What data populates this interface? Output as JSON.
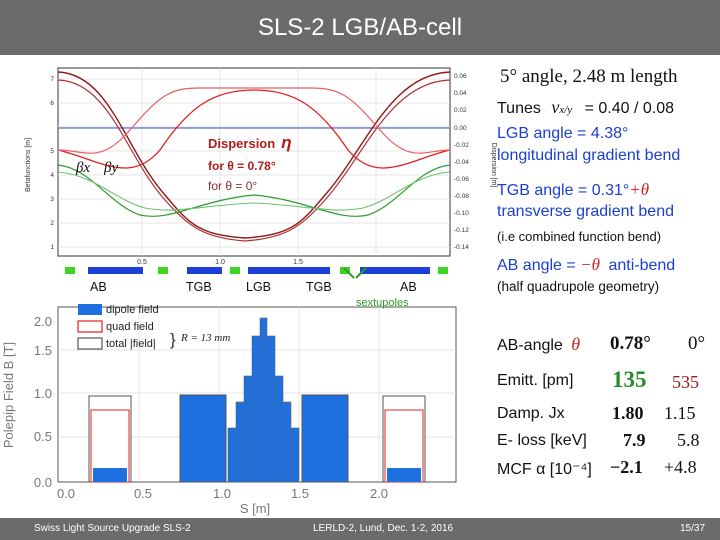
{
  "slide": {
    "title": "SLS-2 LGB/AB-cell",
    "footer_left": "Swiss Light Source Upgrade  SLS-2",
    "footer_center": "LERLD-2, Lund, Dec. 1-2, 2016",
    "footer_right": "15/37"
  },
  "optics_plot": {
    "y_ticks_left": [
      "1",
      "2",
      "3",
      "4",
      "5",
      "6",
      "7"
    ],
    "y_ticks_right": [
      "0.06",
      "0.04",
      "0.02",
      "0.00",
      "-0.02",
      "-0.04",
      "-0.06",
      "-0.08",
      "-0.10",
      "-0.12",
      "-0.14"
    ],
    "x_ticks": [
      "0.5",
      "1.0",
      "1.5"
    ],
    "left_label": "Betafunctions [m]",
    "right_label": "Dispersion [m]",
    "beta_x": "βx",
    "beta_y": "βy",
    "dispersion_title": "Dispersion",
    "eta": "η",
    "disp_case1": "for θ = 0.78°",
    "disp_case2": "for θ = 0°"
  },
  "lattice": {
    "labels": [
      "AB",
      "TGB",
      "LGB",
      "TGB",
      "AB"
    ],
    "sextupoles": "sextupoles",
    "colors": {
      "dipole": "#1c3fd8",
      "quad": "#3cd61c"
    }
  },
  "field_plot": {
    "ylabel": "Polepip Field  B [T]",
    "xlabel": "S [m]",
    "y_ticks": [
      "0.0",
      "0.5",
      "1.0",
      "1.5",
      "2.0"
    ],
    "x_ticks": [
      "0.0",
      "0.5",
      "1.0",
      "1.5",
      "2.0"
    ],
    "legend": [
      "dipole field",
      "quad field",
      "total |field|"
    ],
    "legend_note": "R = 13 mm",
    "colors": {
      "dipole": "#1e6fe0",
      "quad": "#e02020",
      "total": "#555555"
    }
  },
  "right_panel": {
    "line1": "5° angle, 2.48 m length",
    "tunes_label": "Tunes",
    "tunes_nu": "ν",
    "tunes_sub": "x/y",
    "tunes_value": "= 0.40 / 0.08",
    "lgb_line": "LGB angle = 4.38°",
    "lgb_desc": "longitudinal gradient bend",
    "tgb_prefix": "TGB angle = 0.31°",
    "tgb_suffix": "+θ",
    "tgb_desc": "transverse gradient bend",
    "tgb_note": "(i.e combined function bend)",
    "ab_prefix": "AB angle = ",
    "ab_theta": "−θ",
    "ab_suffix": "anti-bend",
    "ab_note": "(half quadrupole geometry)"
  },
  "table": {
    "header_label": "AB-angle",
    "header_theta": "θ",
    "col1_header": "0.78°",
    "col2_header": "0°",
    "rows": [
      {
        "label": "Emitt. [pm]",
        "v1": "135",
        "v2": "535"
      },
      {
        "label": "Damp.  Jx",
        "v1": "1.80",
        "v2": "1.15"
      },
      {
        "label": "E- loss [keV]",
        "v1": "7.9",
        "v2": "5.8"
      },
      {
        "label": "MCF α [10⁻⁴]",
        "v1": "−2.1",
        "v2": "+4.8"
      }
    ]
  }
}
